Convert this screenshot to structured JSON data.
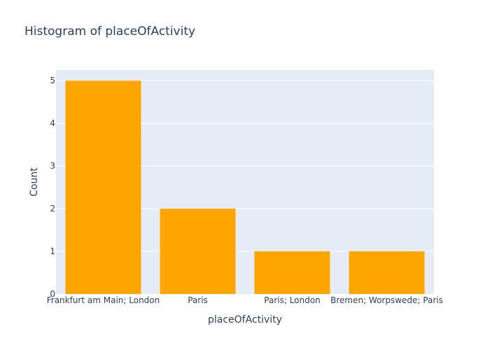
{
  "chart_data": {
    "type": "bar",
    "title": "Histogram of placeOfActivity",
    "xlabel": "placeOfActivity",
    "ylabel": "Count",
    "categories": [
      "Frankfurt am Main; London",
      "Paris",
      "Paris; London",
      "Bremen; Worpswede; Paris"
    ],
    "values": [
      5,
      2,
      1,
      1
    ],
    "ylim": [
      0,
      5.25
    ],
    "yticks": [
      0,
      1,
      2,
      3,
      4,
      5
    ],
    "grid": true,
    "legend": false,
    "colors": {
      "bar": "#ffa500",
      "plot_background": "#e5ecf6",
      "gridline": "#ffffff",
      "text": "#2a3f5f"
    }
  }
}
